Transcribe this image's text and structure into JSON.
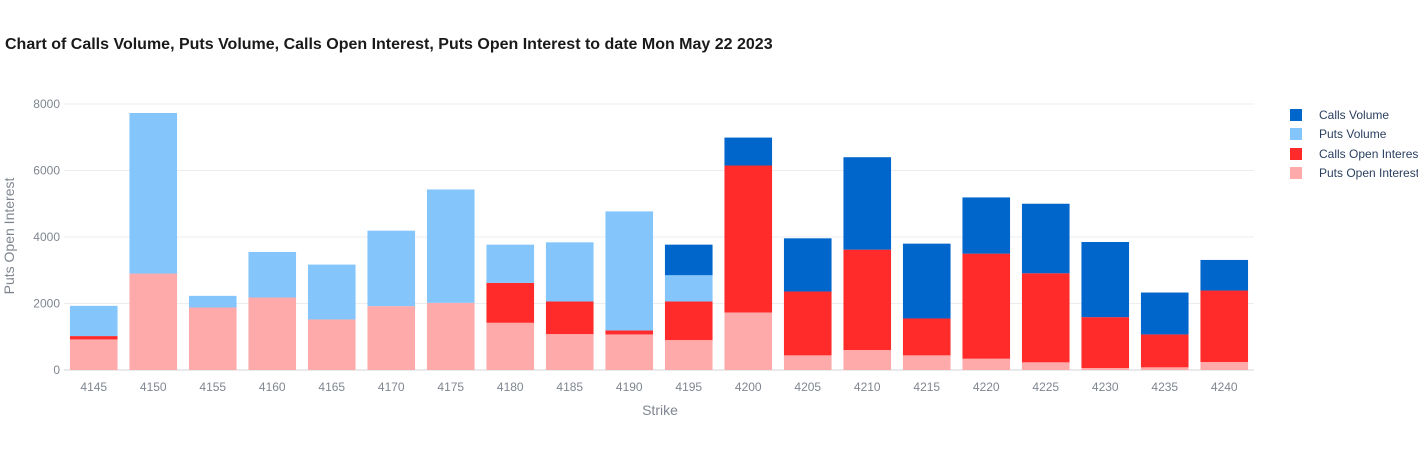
{
  "chart_data": {
    "type": "bar",
    "barmode": "stacked",
    "title": "Chart of Calls Volume, Puts Volume, Calls Open Interest, Puts Open Interest to date Mon May 22 2023",
    "xlabel": "Strike",
    "ylabel": "Puts Open Interest",
    "ylim": [
      0,
      8000
    ],
    "yticks": [
      0,
      2000,
      4000,
      6000,
      8000
    ],
    "grid": true,
    "legend_position": "right",
    "categories": [
      "4145",
      "4150",
      "4155",
      "4160",
      "4165",
      "4170",
      "4175",
      "4180",
      "4185",
      "4190",
      "4195",
      "4200",
      "4205",
      "4210",
      "4215",
      "4220",
      "4225",
      "4230",
      "4235",
      "4240"
    ],
    "series": [
      {
        "name": "Puts Open Interest",
        "color": "#ffaaaa",
        "values": [
          920,
          2900,
          1880,
          2180,
          1520,
          1920,
          2020,
          1420,
          1080,
          1070,
          900,
          1730,
          440,
          600,
          440,
          340,
          230,
          60,
          80,
          240
        ]
      },
      {
        "name": "Calls Open Interest",
        "color": "#ff2a2a",
        "values": [
          100,
          0,
          0,
          0,
          0,
          0,
          0,
          1200,
          980,
          120,
          1160,
          4420,
          1920,
          3020,
          1110,
          3160,
          2680,
          1530,
          990,
          2150
        ]
      },
      {
        "name": "Puts Volume",
        "color": "#84c6fc",
        "values": [
          910,
          4830,
          350,
          1370,
          1650,
          2270,
          3410,
          1150,
          1780,
          3580,
          790,
          0,
          0,
          0,
          0,
          0,
          0,
          0,
          0,
          0
        ]
      },
      {
        "name": "Calls Volume",
        "color": "#0066cc",
        "values": [
          0,
          0,
          0,
          0,
          0,
          0,
          0,
          0,
          0,
          0,
          920,
          840,
          1600,
          2780,
          2250,
          1690,
          2090,
          2260,
          1260,
          920
        ]
      }
    ]
  },
  "legend": [
    {
      "label": "Calls Volume",
      "color": "#0066cc"
    },
    {
      "label": "Puts Volume",
      "color": "#84c6fc"
    },
    {
      "label": "Calls Open Interest",
      "color": "#ff2a2a"
    },
    {
      "label": "Puts Open Interest",
      "color": "#ffaaaa"
    }
  ]
}
